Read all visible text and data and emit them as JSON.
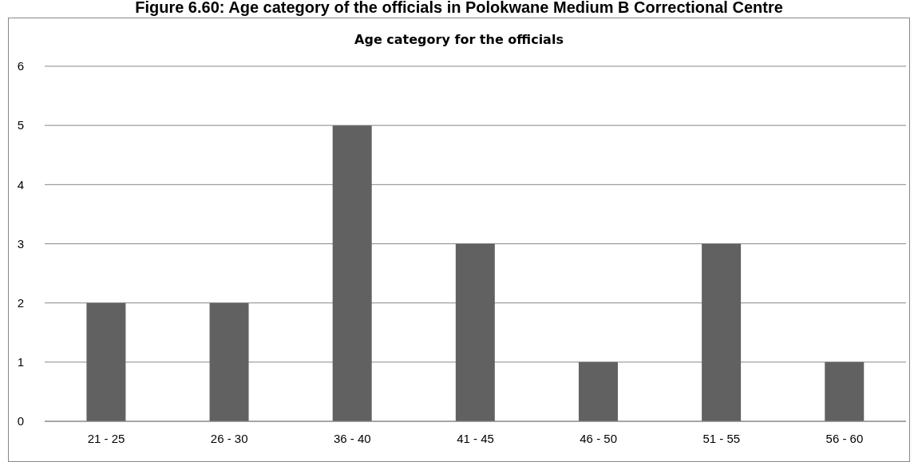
{
  "chart_data": {
    "type": "bar",
    "title": "Figure 6.60: Age category of the officials in Polokwane Medium B Correctional Centre",
    "subtitle": "Age category for the officials",
    "categories": [
      "21 - 25",
      "26 - 30",
      "36 - 40",
      "41 - 45",
      "46 - 50",
      "51 - 55",
      "56 - 60"
    ],
    "values": [
      2,
      2,
      5,
      3,
      1,
      3,
      1
    ],
    "color": "#616161",
    "ylim": [
      0,
      6
    ],
    "yticks": [
      0,
      1,
      2,
      3,
      4,
      5,
      6
    ],
    "grid": "y",
    "legend": false
  }
}
